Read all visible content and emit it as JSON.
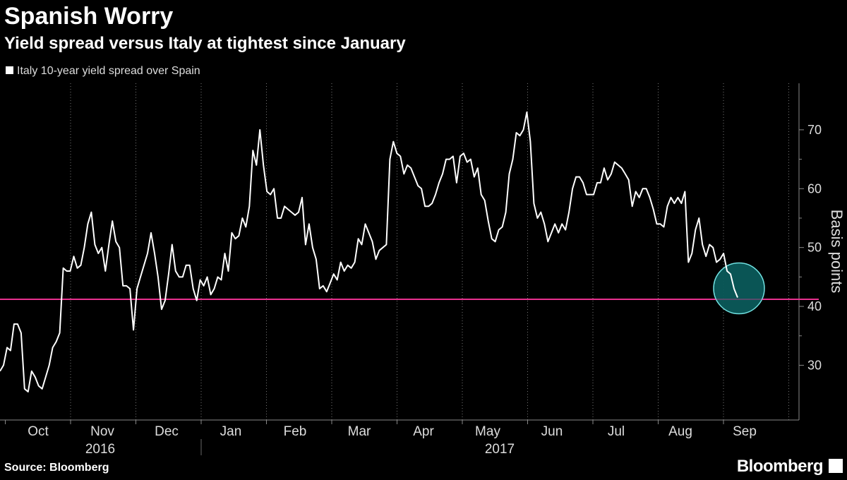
{
  "chart_data": {
    "type": "line",
    "title": "Spanish Worry",
    "subtitle": "Yield spread versus Italy at tightest since January",
    "y_axis_label": "Basis points",
    "source": "Source: Bloomberg",
    "brand": "Bloomberg",
    "x_labels": [
      "Oct",
      "Nov",
      "Dec",
      "Jan",
      "Feb",
      "Mar",
      "Apr",
      "May",
      "Jun",
      "Jul",
      "Aug",
      "Sep"
    ],
    "years": [
      "2016",
      "2017"
    ],
    "ylim": [
      20.7,
      77.9
    ],
    "yticks": [
      30,
      40,
      50,
      60,
      70
    ],
    "reference_line": {
      "value": 41.2,
      "color": "#e8318f"
    },
    "series": [
      {
        "name": "Italy 10-year yield spread over Spain",
        "color": "#ffffff",
        "values": [
          29,
          30,
          33,
          32.5,
          37,
          37,
          35.5,
          26,
          25.5,
          29,
          28,
          26.5,
          26,
          28,
          30,
          33,
          34,
          35.5,
          46.5,
          46,
          46,
          48.5,
          46.5,
          47,
          50,
          54,
          56,
          50.5,
          49,
          50,
          46,
          50.5,
          54.5,
          51,
          50,
          43.5,
          43.5,
          43,
          36,
          43,
          45,
          47,
          49,
          52.5,
          49,
          45,
          39.5,
          41,
          45.5,
          50.5,
          46,
          45,
          45,
          47,
          47,
          43,
          41,
          44.5,
          43.5,
          45,
          42,
          43,
          45,
          44.5,
          49,
          46,
          52.5,
          51.5,
          52,
          55,
          53.5,
          57,
          66.5,
          64,
          70,
          64,
          59.5,
          59,
          60,
          55,
          55,
          57,
          56.5,
          56,
          55.5,
          56,
          58.5,
          50.5,
          54,
          50,
          48,
          43,
          43.5,
          42.5,
          44,
          45.5,
          44.5,
          47.5,
          46,
          47,
          46.5,
          47.5,
          51.5,
          50.5,
          54,
          52.5,
          51,
          48,
          49.5,
          50,
          50.5,
          65,
          68,
          66,
          65.5,
          62.5,
          64,
          63.5,
          62,
          60.5,
          60,
          57,
          57,
          57.5,
          59,
          61,
          62.5,
          65,
          65,
          65.5,
          61,
          65.5,
          66,
          64.5,
          65,
          62,
          63.5,
          59,
          58,
          54.5,
          51.5,
          51,
          53,
          53.5,
          56,
          62.5,
          65,
          69.5,
          69,
          70,
          73,
          68,
          57.5,
          55,
          56,
          54,
          51,
          52.5,
          54,
          52.5,
          54,
          53,
          56,
          60,
          62,
          62,
          61,
          59,
          59,
          59,
          61,
          61,
          63.5,
          61.5,
          62.5,
          64.5,
          64,
          63.5,
          62.5,
          61.5,
          57,
          59.5,
          58.5,
          60,
          60,
          58.5,
          56.5,
          54,
          54,
          53.5,
          57,
          58.5,
          57.5,
          58.5,
          57.5,
          59.5,
          47.5,
          49,
          53,
          55,
          50.5,
          48.5,
          50.5,
          50,
          47.5,
          48,
          49,
          46,
          45.5,
          43,
          41.5
        ]
      }
    ]
  }
}
